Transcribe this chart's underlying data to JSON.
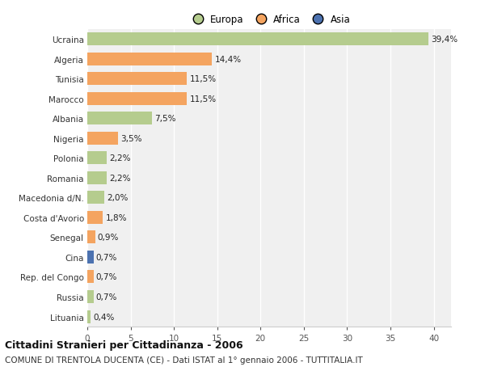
{
  "countries": [
    "Ucraina",
    "Algeria",
    "Tunisia",
    "Marocco",
    "Albania",
    "Nigeria",
    "Polonia",
    "Romania",
    "Macedonia d/N.",
    "Costa d'Avorio",
    "Senegal",
    "Cina",
    "Rep. del Congo",
    "Russia",
    "Lituania"
  ],
  "values": [
    39.4,
    14.4,
    11.5,
    11.5,
    7.5,
    3.5,
    2.2,
    2.2,
    2.0,
    1.8,
    0.9,
    0.7,
    0.7,
    0.7,
    0.4
  ],
  "labels": [
    "39,4%",
    "14,4%",
    "11,5%",
    "11,5%",
    "7,5%",
    "3,5%",
    "2,2%",
    "2,2%",
    "2,0%",
    "1,8%",
    "0,9%",
    "0,7%",
    "0,7%",
    "0,7%",
    "0,4%"
  ],
  "continents": [
    "Europa",
    "Africa",
    "Africa",
    "Africa",
    "Europa",
    "Africa",
    "Europa",
    "Europa",
    "Europa",
    "Africa",
    "Africa",
    "Asia",
    "Africa",
    "Europa",
    "Europa"
  ],
  "continent_colors": {
    "Europa": "#b5cc8e",
    "Africa": "#f4a460",
    "Asia": "#4c72b0"
  },
  "xlim": [
    0,
    42
  ],
  "xticks": [
    0,
    5,
    10,
    15,
    20,
    25,
    30,
    35,
    40
  ],
  "background_color": "#ffffff",
  "plot_background": "#f0f0f0",
  "grid_color": "#ffffff",
  "title_line1": "Cittadini Stranieri per Cittadinanza - 2006",
  "title_line2": "COMUNE DI TRENTOLA DUCENTA (CE) - Dati ISTAT al 1° gennaio 2006 - TUTTITALIA.IT",
  "bar_height": 0.65,
  "label_fontsize": 7.5,
  "tick_fontsize": 7.5,
  "title1_fontsize": 9,
  "title2_fontsize": 7.5,
  "legend_fontsize": 8.5
}
